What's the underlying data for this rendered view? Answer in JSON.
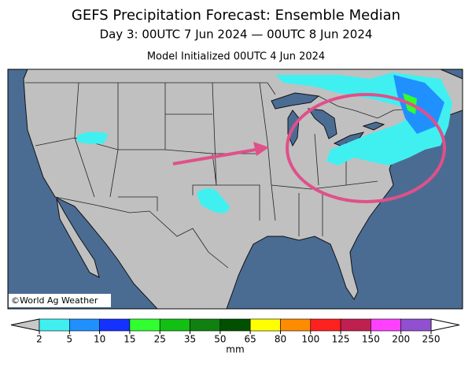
{
  "title": "GEFS Precipitation Forecast: Ensemble Median",
  "subtitle": "Day 3: 00UTC 7 Jun 2024 — 00UTC 8 Jun 2024",
  "init": "Model Initialized 00UTC 4 Jun 2024",
  "credit": "©World Ag Weather",
  "colorbar": {
    "ticks": [
      2,
      5,
      10,
      15,
      25,
      35,
      50,
      65,
      80,
      100,
      125,
      150,
      200,
      250
    ],
    "colors": [
      "#40f0f0",
      "#2090ff",
      "#1432ff",
      "#30ff30",
      "#12c012",
      "#108010",
      "#005000",
      "#ffff00",
      "#ff8c00",
      "#ff2020",
      "#c02050",
      "#ff40ff",
      "#9050d0"
    ],
    "under_color": "#c8c8c8",
    "over_color": "#ffffff",
    "unit": "mm"
  }
}
